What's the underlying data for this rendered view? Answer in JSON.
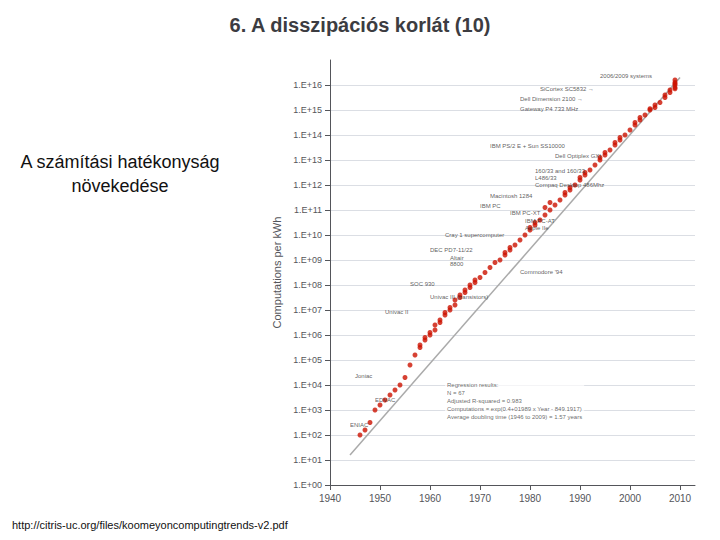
{
  "chart_data": {
    "type": "scatter",
    "title": "6. A disszipációs korlát (10)",
    "subtitle": "A számítási hatékonyság\nnövekedése",
    "footer": "http://citris-uc.org/files/koomeyoncomputingtrends-v2.pdf",
    "ylabel": "Computations per kWh",
    "xlim": [
      1940,
      2013
    ],
    "xticks": [
      1940,
      1950,
      1960,
      1970,
      1980,
      1990,
      2000,
      2010
    ],
    "ylim": [
      0,
      17
    ],
    "yticks": [
      {
        "value": 0,
        "label": "1.E+00"
      },
      {
        "value": 1,
        "label": "1.E+01"
      },
      {
        "value": 2,
        "label": "1.E+02"
      },
      {
        "value": 3,
        "label": "1.E+03"
      },
      {
        "value": 4,
        "label": "1.E+04"
      },
      {
        "value": 5,
        "label": "1.E+05"
      },
      {
        "value": 6,
        "label": "1.E+06"
      },
      {
        "value": 7,
        "label": "1.E+07"
      },
      {
        "value": 8,
        "label": "1.E+08"
      },
      {
        "value": 9,
        "label": "1.E+09"
      },
      {
        "value": 10,
        "label": "1.E+10"
      },
      {
        "value": 11,
        "label": "1.E+11"
      },
      {
        "value": 12,
        "label": "1.E+12"
      },
      {
        "value": 13,
        "label": "1.E+13"
      },
      {
        "value": 14,
        "label": "1.E+14"
      },
      {
        "value": 15,
        "label": "1.E+15"
      },
      {
        "value": 16,
        "label": "1.E+16"
      }
    ],
    "grid": true,
    "series": [
      {
        "type": "line",
        "color": "#aaaaaa",
        "x": [
          1944,
          2010
        ],
        "values": [
          1.2,
          16.3
        ]
      },
      {
        "type": "scatter",
        "color": "#cc1100",
        "marker": "circle",
        "x": [
          1946,
          1947,
          1948,
          1949,
          1950,
          1951,
          1952,
          1953,
          1954,
          1955,
          1956,
          1957,
          1958,
          1959,
          1960,
          1961,
          1962,
          1963,
          1964,
          1965,
          1966,
          1967,
          1968,
          1969,
          1970,
          1971,
          1972,
          1973,
          1974,
          1975,
          1976,
          1977,
          1978,
          1979,
          1980,
          1981,
          1982,
          1983,
          1984,
          1985,
          1986,
          1987,
          1988,
          1989,
          1990,
          1991,
          1992,
          1993,
          1994,
          1995,
          1996,
          1997,
          1998,
          1999,
          2000,
          2001,
          2002,
          2003,
          2004,
          2005,
          2006,
          2007,
          2008,
          2009,
          2009,
          2009,
          2009
        ],
        "values": [
          2.0,
          2.2,
          2.5,
          3.0,
          3.2,
          3.4,
          3.6,
          3.8,
          4.0,
          4.3,
          4.8,
          5.2,
          5.5,
          5.8,
          6.0,
          6.2,
          6.5,
          6.8,
          7.0,
          7.2,
          7.5,
          7.7,
          7.9,
          8.1,
          8.3,
          8.5,
          8.7,
          8.9,
          9.0,
          9.2,
          9.4,
          9.6,
          9.8,
          10.0,
          10.2,
          10.4,
          10.6,
          10.8,
          11.0,
          11.2,
          11.4,
          11.6,
          11.8,
          12.0,
          12.2,
          12.4,
          12.6,
          12.8,
          13.0,
          13.2,
          13.4,
          13.6,
          13.8,
          14.0,
          14.2,
          14.4,
          14.6,
          14.8,
          15.0,
          15.1,
          15.3,
          15.5,
          15.7,
          16.0,
          16.1,
          16.2,
          15.9
        ]
      },
      {
        "type": "scatter",
        "color": "#cc1100",
        "marker": "circle",
        "x": [
          1958,
          1959,
          1960,
          1961,
          1962,
          1963,
          1964,
          1965,
          1966,
          1967,
          1968,
          1969,
          1975,
          1976,
          1980,
          1981,
          1983,
          1984,
          1987,
          1988,
          1990,
          1991,
          1994,
          1995,
          1997,
          1998,
          2001,
          2002,
          2004,
          2005,
          2007,
          2008,
          2009,
          2009
        ],
        "values": [
          5.6,
          5.9,
          6.1,
          6.4,
          6.6,
          6.9,
          7.1,
          7.4,
          7.6,
          7.8,
          8.0,
          8.2,
          9.3,
          9.5,
          10.3,
          10.5,
          11.1,
          11.3,
          11.7,
          11.9,
          12.3,
          12.5,
          13.1,
          13.3,
          13.7,
          13.9,
          14.5,
          14.7,
          15.05,
          15.2,
          15.6,
          15.8,
          15.85,
          16.05
        ]
      }
    ],
    "annotations": [
      {
        "x": 1994,
        "y": 16.35,
        "text": "2006/2009 systems"
      },
      {
        "x": 1982,
        "y": 15.85,
        "text": "SiCortex SC5832 →"
      },
      {
        "x": 1978,
        "y": 15.45,
        "text": "Dell Dimension 2100 →"
      },
      {
        "x": 1978,
        "y": 15.05,
        "text": "Gateway P4 733 MHz"
      },
      {
        "x": 1972,
        "y": 13.55,
        "text": "IBM PS/2 E + Sun SS10000"
      },
      {
        "x": 1985,
        "y": 13.15,
        "text": "Dell Optiplex GXI"
      },
      {
        "x": 1981,
        "y": 12.55,
        "text": "160/33 and 160/33"
      },
      {
        "x": 1981,
        "y": 12.28,
        "text": "L486/33"
      },
      {
        "x": 1981,
        "y": 12.02,
        "text": "Compaq Desktop 486Mhz"
      },
      {
        "x": 1972,
        "y": 11.55,
        "text": "Macintosh 1284"
      },
      {
        "x": 1970,
        "y": 11.18,
        "text": "IBM PC"
      },
      {
        "x": 1976,
        "y": 10.9,
        "text": "IBM PC-XT"
      },
      {
        "x": 1979,
        "y": 10.55,
        "text": "IBM PC-AT"
      },
      {
        "x": 1979,
        "y": 10.3,
        "text": "Apple IIe"
      },
      {
        "x": 1963,
        "y": 10.0,
        "text": "Cray 1 supercomputer"
      },
      {
        "x": 1960,
        "y": 9.4,
        "text": "DEC PD7-11/22"
      },
      {
        "x": 1964,
        "y": 9.1,
        "text": "Altair"
      },
      {
        "x": 1964,
        "y": 8.85,
        "text": "8800"
      },
      {
        "x": 1978,
        "y": 8.52,
        "text": "Commodore '94"
      },
      {
        "x": 1956,
        "y": 8.05,
        "text": "SOC 930"
      },
      {
        "x": 1960,
        "y": 7.52,
        "text": "Univac III (transistors)"
      },
      {
        "x": 1951,
        "y": 6.92,
        "text": "Univac II"
      },
      {
        "x": 1945,
        "y": 4.35,
        "text": "Joniac"
      },
      {
        "x": 1949,
        "y": 3.42,
        "text": "EDVAC"
      },
      {
        "x": 1944,
        "y": 2.42,
        "text": "ENIAC"
      }
    ],
    "regression": {
      "x": 1963,
      "y": 2.5,
      "text": "Regression results:\nN = 67\nAdjusted R-squared = 0.983\nComputations = exp(0.4+01989 x Year - 849.1917)\nAverage doubling time (1946 to 2009) = 1.57 years"
    }
  }
}
